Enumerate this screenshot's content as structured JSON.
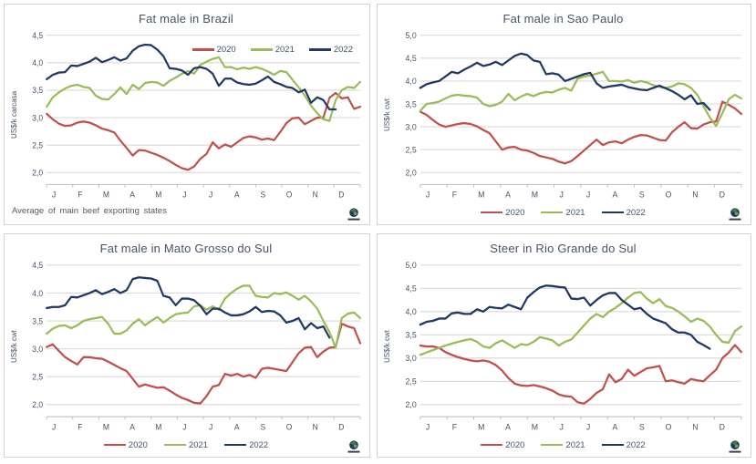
{
  "colors": {
    "s2020": "#C0504D",
    "s2021": "#9BBB59",
    "s2022": "#1F3864",
    "grid": "#D9D9D9",
    "axis": "#BFBFBF",
    "axis_text": "#44546A",
    "title_text": "#44546A",
    "footnote_text": "#595959",
    "panel_border": "#D2D2D2"
  },
  "chart_data": [
    {
      "type": "line",
      "id": "brazil",
      "title": "Fat male in Brazil",
      "ylabel": "US$/k carcasa",
      "xlabel": "",
      "ylim": [
        2.0,
        4.5
      ],
      "ytick_labels": [
        "4,5",
        "4,0",
        "3,5",
        "3,0",
        "2,5",
        "2,0"
      ],
      "months": [
        "J",
        "F",
        "M",
        "A",
        "M",
        "J",
        "J",
        "A",
        "S",
        "O",
        "N",
        "D"
      ],
      "weeks": 52,
      "grid": true,
      "legend_position": "top-right-inside",
      "footnote": "Average of main beef exporting states",
      "series": [
        {
          "name": "2020",
          "color_key": "s2020",
          "values": [
            3.07,
            2.97,
            2.89,
            2.85,
            2.86,
            2.91,
            2.93,
            2.91,
            2.86,
            2.8,
            2.77,
            2.73,
            2.58,
            2.45,
            2.31,
            2.41,
            2.4,
            2.36,
            2.32,
            2.27,
            2.21,
            2.14,
            2.08,
            2.05,
            2.11,
            2.25,
            2.34,
            2.55,
            2.44,
            2.51,
            2.47,
            2.55,
            2.63,
            2.66,
            2.64,
            2.6,
            2.62,
            2.59,
            2.74,
            2.9,
            2.99,
            3.0,
            2.88,
            2.94,
            3.0,
            3.0,
            3.36,
            3.45,
            3.35,
            3.37,
            3.16,
            3.2
          ]
        },
        {
          "name": "2021",
          "color_key": "s2021",
          "values": [
            3.2,
            3.37,
            3.46,
            3.53,
            3.58,
            3.6,
            3.56,
            3.54,
            3.4,
            3.34,
            3.33,
            3.43,
            3.55,
            3.43,
            3.6,
            3.52,
            3.63,
            3.65,
            3.64,
            3.58,
            3.67,
            3.73,
            3.8,
            3.85,
            3.8,
            3.96,
            4.02,
            4.07,
            4.1,
            3.92,
            3.92,
            3.88,
            3.91,
            3.89,
            3.92,
            3.89,
            3.84,
            3.78,
            3.85,
            3.83,
            3.69,
            3.55,
            3.4,
            3.22,
            3.08,
            2.97,
            2.94,
            3.32,
            3.5,
            3.56,
            3.54,
            3.65
          ]
        },
        {
          "name": "2022",
          "color_key": "s2022",
          "values": [
            3.7,
            3.78,
            3.82,
            3.83,
            3.95,
            3.94,
            3.98,
            4.02,
            4.09,
            4.01,
            4.05,
            4.1,
            4.04,
            4.08,
            4.22,
            4.3,
            4.33,
            4.32,
            4.24,
            4.12,
            3.9,
            3.89,
            3.86,
            3.78,
            3.9,
            3.92,
            3.89,
            3.8,
            3.58,
            3.71,
            3.71,
            3.64,
            3.61,
            3.6,
            3.62,
            3.68,
            3.75,
            3.65,
            3.61,
            3.56,
            3.54,
            3.46,
            3.51,
            3.27,
            3.37,
            3.32,
            3.15,
            3.15
          ]
        }
      ]
    },
    {
      "type": "line",
      "id": "sao-paulo",
      "title": "Fat male in Sao Paulo",
      "ylabel": "US$/k cwt",
      "xlabel": "",
      "ylim": [
        2.0,
        5.0
      ],
      "ytick_labels": [
        "5,0",
        "4,5",
        "4,0",
        "3,5",
        "3,0",
        "2,5",
        "2,0"
      ],
      "months": [
        "J",
        "F",
        "M",
        "A",
        "M",
        "J",
        "J",
        "A",
        "S",
        "O",
        "N",
        "D"
      ],
      "weeks": 52,
      "grid": true,
      "legend_position": "bottom",
      "footnote": "",
      "series": [
        {
          "name": "2020",
          "color_key": "s2020",
          "values": [
            3.33,
            3.26,
            3.15,
            3.05,
            3.0,
            3.03,
            3.06,
            3.08,
            3.06,
            3.01,
            2.93,
            2.86,
            2.68,
            2.5,
            2.55,
            2.56,
            2.5,
            2.48,
            2.43,
            2.36,
            2.33,
            2.3,
            2.24,
            2.2,
            2.25,
            2.36,
            2.48,
            2.6,
            2.72,
            2.6,
            2.66,
            2.68,
            2.64,
            2.72,
            2.78,
            2.82,
            2.81,
            2.76,
            2.71,
            2.7,
            2.88,
            3.0,
            3.1,
            2.97,
            2.96,
            3.05,
            3.1,
            3.12,
            3.55,
            3.48,
            3.4,
            3.28
          ]
        },
        {
          "name": "2021",
          "color_key": "s2021",
          "values": [
            3.35,
            3.5,
            3.52,
            3.55,
            3.62,
            3.68,
            3.7,
            3.68,
            3.67,
            3.64,
            3.5,
            3.45,
            3.48,
            3.55,
            3.72,
            3.58,
            3.66,
            3.72,
            3.67,
            3.73,
            3.76,
            3.75,
            3.81,
            3.85,
            3.79,
            4.05,
            4.1,
            4.12,
            4.16,
            4.2,
            4.0,
            4.0,
            3.99,
            4.02,
            3.96,
            4.0,
            3.97,
            3.91,
            3.87,
            3.85,
            3.88,
            3.95,
            3.93,
            3.85,
            3.7,
            3.45,
            3.2,
            3.02,
            3.3,
            3.6,
            3.7,
            3.62
          ]
        },
        {
          "name": "2022",
          "color_key": "s2022",
          "values": [
            3.85,
            3.93,
            3.97,
            4.0,
            4.1,
            4.2,
            4.17,
            4.25,
            4.32,
            4.4,
            4.33,
            4.36,
            4.42,
            4.35,
            4.45,
            4.55,
            4.6,
            4.57,
            4.45,
            4.42,
            4.15,
            4.17,
            4.14,
            4.0,
            4.05,
            4.1,
            4.15,
            4.18,
            3.95,
            3.85,
            3.88,
            3.9,
            3.92,
            3.87,
            3.84,
            3.81,
            3.8,
            3.85,
            3.9,
            3.84,
            3.78,
            3.7,
            3.6,
            3.69,
            3.5,
            3.52,
            3.37
          ]
        }
      ]
    },
    {
      "type": "line",
      "id": "mato-grosso-do-sul",
      "title": "Fat male in Mato Grosso do Sul",
      "ylabel": "US$/k cwt",
      "xlabel": "",
      "ylim": [
        2.0,
        4.5
      ],
      "ytick_labels": [
        "4,5",
        "4,0",
        "3,5",
        "3,0",
        "2,5",
        "2,0"
      ],
      "months": [
        "J",
        "F",
        "M",
        "A",
        "M",
        "J",
        "J",
        "A",
        "S",
        "O",
        "N",
        "D"
      ],
      "weeks": 52,
      "grid": true,
      "legend_position": "bottom",
      "footnote": "",
      "series": [
        {
          "name": "2020",
          "color_key": "s2020",
          "values": [
            3.03,
            3.08,
            2.96,
            2.85,
            2.78,
            2.72,
            2.85,
            2.85,
            2.83,
            2.82,
            2.77,
            2.71,
            2.65,
            2.6,
            2.46,
            2.32,
            2.36,
            2.33,
            2.3,
            2.31,
            2.25,
            2.18,
            2.12,
            2.08,
            2.03,
            2.02,
            2.15,
            2.32,
            2.35,
            2.55,
            2.52,
            2.55,
            2.5,
            2.53,
            2.48,
            2.64,
            2.66,
            2.64,
            2.62,
            2.6,
            2.76,
            2.92,
            3.02,
            3.03,
            2.85,
            2.95,
            3.02,
            3.03,
            3.45,
            3.4,
            3.37,
            3.1
          ]
        },
        {
          "name": "2021",
          "color_key": "s2021",
          "values": [
            3.27,
            3.36,
            3.41,
            3.42,
            3.37,
            3.42,
            3.5,
            3.53,
            3.55,
            3.57,
            3.45,
            3.27,
            3.27,
            3.33,
            3.45,
            3.53,
            3.42,
            3.5,
            3.57,
            3.47,
            3.55,
            3.62,
            3.64,
            3.65,
            3.76,
            3.78,
            3.7,
            3.76,
            3.7,
            3.9,
            4.0,
            4.08,
            4.13,
            4.13,
            3.95,
            3.93,
            3.92,
            4.0,
            3.98,
            4.01,
            3.95,
            3.88,
            3.95,
            3.85,
            3.72,
            3.5,
            3.3,
            3.02,
            3.55,
            3.63,
            3.65,
            3.55
          ]
        },
        {
          "name": "2022",
          "color_key": "s2022",
          "values": [
            3.73,
            3.75,
            3.75,
            3.78,
            3.93,
            3.92,
            3.96,
            4.0,
            4.05,
            3.98,
            4.02,
            4.07,
            4.0,
            4.05,
            4.25,
            4.28,
            4.27,
            4.26,
            4.22,
            3.95,
            3.92,
            3.78,
            3.9,
            3.9,
            3.87,
            3.77,
            3.62,
            3.72,
            3.72,
            3.65,
            3.6,
            3.6,
            3.62,
            3.67,
            3.75,
            3.66,
            3.68,
            3.67,
            3.6,
            3.47,
            3.5,
            3.55,
            3.35,
            3.46,
            3.37,
            3.4,
            3.2
          ]
        }
      ]
    },
    {
      "type": "line",
      "id": "rio-grande-do-sul",
      "title": "Steer  in Rio Grande do Sul",
      "ylabel": "US$/k cwt",
      "xlabel": "",
      "ylim": [
        2.0,
        5.0
      ],
      "ytick_labels": [
        "5,0",
        "4,5",
        "4,0",
        "3,5",
        "3,0",
        "2,5",
        "2,0"
      ],
      "months": [
        "J",
        "F",
        "M",
        "A",
        "M",
        "J",
        "J",
        "A",
        "S",
        "O",
        "N",
        "D"
      ],
      "weeks": 52,
      "grid": true,
      "legend_position": "bottom",
      "footnote": "",
      "series": [
        {
          "name": "2020",
          "color_key": "s2020",
          "values": [
            3.27,
            3.25,
            3.25,
            3.22,
            3.13,
            3.07,
            3.02,
            2.98,
            2.95,
            2.93,
            2.95,
            2.92,
            2.85,
            2.73,
            2.57,
            2.45,
            2.41,
            2.4,
            2.42,
            2.39,
            2.35,
            2.3,
            2.22,
            2.18,
            2.17,
            2.05,
            2.02,
            2.12,
            2.25,
            2.33,
            2.65,
            2.48,
            2.55,
            2.75,
            2.62,
            2.7,
            2.78,
            2.8,
            2.83,
            2.5,
            2.52,
            2.48,
            2.45,
            2.55,
            2.52,
            2.5,
            2.63,
            2.75,
            3.0,
            3.12,
            3.28,
            3.13
          ]
        },
        {
          "name": "2021",
          "color_key": "s2021",
          "values": [
            3.07,
            3.12,
            3.17,
            3.22,
            3.27,
            3.31,
            3.35,
            3.38,
            3.41,
            3.35,
            3.25,
            3.22,
            3.32,
            3.38,
            3.3,
            3.22,
            3.3,
            3.28,
            3.35,
            3.45,
            3.42,
            3.38,
            3.27,
            3.35,
            3.4,
            3.55,
            3.7,
            3.85,
            3.95,
            3.88,
            4.0,
            4.08,
            4.18,
            4.3,
            4.4,
            4.42,
            4.28,
            4.18,
            4.27,
            4.12,
            4.08,
            4.0,
            3.9,
            3.78,
            3.85,
            3.8,
            3.68,
            3.5,
            3.35,
            3.33,
            3.58,
            3.68
          ]
        },
        {
          "name": "2022",
          "color_key": "s2022",
          "values": [
            3.72,
            3.78,
            3.8,
            3.85,
            3.85,
            3.96,
            3.98,
            3.95,
            3.95,
            4.05,
            4.0,
            4.1,
            4.08,
            4.07,
            4.15,
            4.1,
            4.05,
            4.3,
            4.42,
            4.52,
            4.56,
            4.55,
            4.53,
            4.52,
            4.28,
            4.27,
            4.3,
            4.13,
            4.25,
            4.35,
            4.4,
            4.4,
            4.25,
            4.15,
            4.05,
            4.08,
            3.95,
            3.85,
            3.8,
            3.75,
            3.62,
            3.55,
            3.55,
            3.5,
            3.35,
            3.28,
            3.2
          ]
        }
      ]
    }
  ]
}
